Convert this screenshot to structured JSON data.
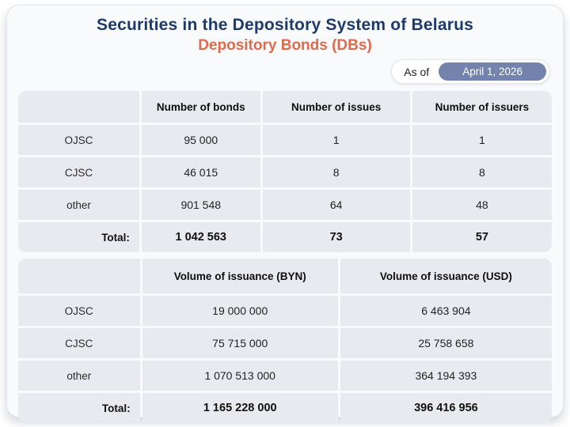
{
  "header": {
    "title": "Securities in the Depository System of Belarus",
    "subtitle": "Depository Bonds (DBs)",
    "as_of_label": "As of",
    "as_of_date": "April 1, 2026"
  },
  "colors": {
    "title_navy": "#1e3a6b",
    "subtitle_coral": "#e06a4d",
    "date_pill_slate": "#7383ac",
    "cell_background": "#e8eaf0",
    "card_background": "#f9fafc"
  },
  "tables": {
    "bonds": {
      "columns": [
        "",
        "Number of bonds",
        "Number of issues",
        "Number of issuers"
      ],
      "rows": [
        {
          "label": "OJSC",
          "values": [
            "95 000",
            "1",
            "1"
          ]
        },
        {
          "label": "CJSC",
          "values": [
            "46 015",
            "8",
            "8"
          ]
        },
        {
          "label": "other",
          "values": [
            "901 548",
            "64",
            "48"
          ]
        }
      ],
      "total": {
        "label": "Total:",
        "values": [
          "1 042 563",
          "73",
          "57"
        ]
      }
    },
    "volume": {
      "columns": [
        "",
        "Volume of issuance (BYN)",
        "Volume of issuance (USD)"
      ],
      "rows": [
        {
          "label": "OJSC",
          "values": [
            "19 000 000",
            "6 463 904"
          ]
        },
        {
          "label": "CJSC",
          "values": [
            "75 715 000",
            "25 758 658"
          ]
        },
        {
          "label": "other",
          "values": [
            "1 070 513 000",
            "364 194 393"
          ]
        }
      ],
      "total": {
        "label": "Total:",
        "values": [
          "1 165 228 000",
          "396 416 956"
        ]
      }
    }
  },
  "chart_data": [
    {
      "type": "table",
      "columns": [
        "",
        "Number of bonds",
        "Number of issues",
        "Number of issuers"
      ],
      "rows": [
        [
          "OJSC",
          95000,
          1,
          1
        ],
        [
          "CJSC",
          46015,
          8,
          8
        ],
        [
          "other",
          901548,
          64,
          48
        ],
        [
          "Total:",
          1042563,
          73,
          57
        ]
      ]
    },
    {
      "type": "table",
      "columns": [
        "",
        "Volume of issuance (BYN)",
        "Volume of issuance (USD)"
      ],
      "rows": [
        [
          "OJSC",
          19000000,
          6463904
        ],
        [
          "CJSC",
          75715000,
          25758658
        ],
        [
          "other",
          1070513000,
          364194393
        ],
        [
          "Total:",
          1165228000,
          396416956
        ]
      ]
    }
  ]
}
